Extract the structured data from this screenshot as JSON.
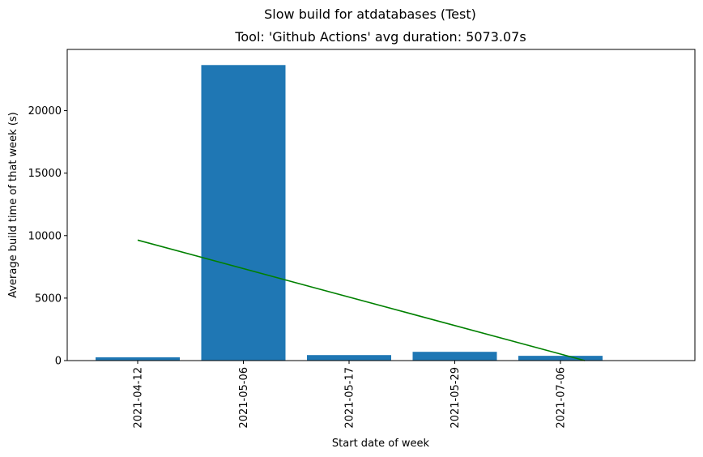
{
  "chart_data": {
    "type": "bar",
    "suptitle": "Slow build for atdatabases (Test)",
    "title": "Tool: 'Github Actions' avg duration: 5073.07s",
    "xlabel": "Start date of week",
    "ylabel": "Average build time of that week (s)",
    "categories": [
      "2021-04-12",
      "2021-05-06",
      "2021-05-17",
      "2021-05-29",
      "2021-07-06"
    ],
    "values": [
      260,
      23650,
      440,
      700,
      380
    ],
    "ylim": [
      0,
      24900
    ],
    "yticks": [
      0,
      5000,
      10000,
      15000,
      20000
    ],
    "ytick_labels": [
      "0",
      "5000",
      "10000",
      "15000",
      "20000"
    ],
    "bar_color": "#1f77b4",
    "trend_line": {
      "color": "#008000",
      "start": {
        "category": "2021-04-12",
        "value": 9640
      },
      "end": {
        "category": "2021-07-06",
        "value": 0
      }
    },
    "x_extra_slots": 1,
    "grid": false,
    "legend": "none"
  }
}
